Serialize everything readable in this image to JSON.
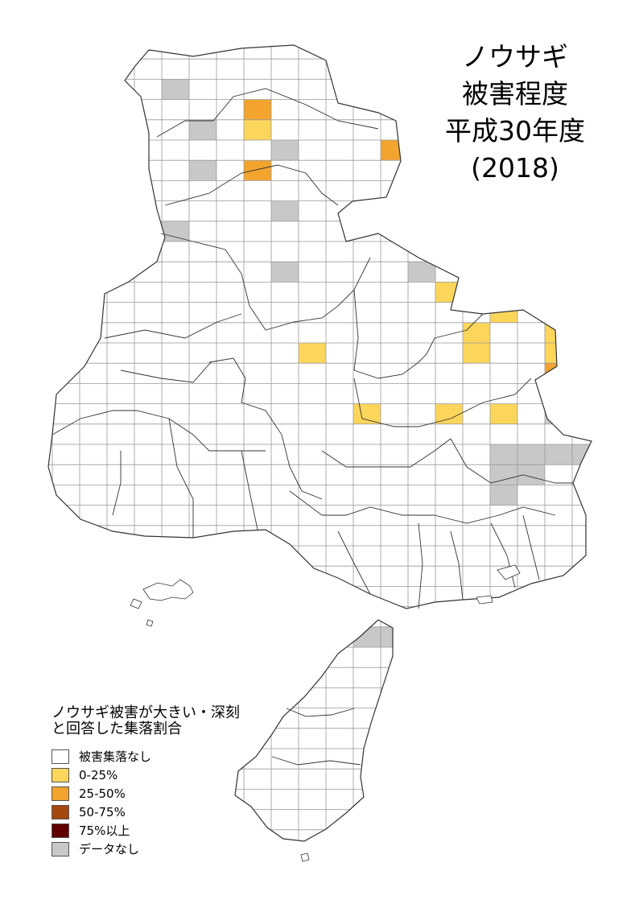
{
  "title": {
    "lines": [
      "ノウサギ",
      "被害程度",
      "平成30年度",
      "(2018)"
    ]
  },
  "legend": {
    "heading_lines": [
      "ノウサギ被害が大きい・深刻",
      "と回答した集落割合"
    ],
    "items": [
      {
        "label": "被害集落なし",
        "color": "#ffffff"
      },
      {
        "label": "0-25%",
        "color": "#fcd65a"
      },
      {
        "label": "25-50%",
        "color": "#f2a42e"
      },
      {
        "label": "50-75%",
        "color": "#a5470f"
      },
      {
        "label": "75%以上",
        "color": "#600000"
      },
      {
        "label": "データなし",
        "color": "#c8c8c8"
      }
    ]
  },
  "map": {
    "grid_color": "#999999",
    "outline_color": "#333333",
    "mainland_cells": {
      "0-25%": [
        [
          7,
          4
        ],
        [
          14,
          12
        ],
        [
          9,
          15
        ],
        [
          16,
          13
        ],
        [
          18,
          12
        ],
        [
          19,
          12
        ],
        [
          15,
          14
        ],
        [
          15,
          15
        ],
        [
          18,
          14
        ],
        [
          18,
          15
        ],
        [
          11,
          18
        ],
        [
          14,
          18
        ],
        [
          16,
          18
        ]
      ],
      "25-50%": [
        [
          7,
          3
        ],
        [
          7,
          6
        ],
        [
          12,
          5
        ],
        [
          18,
          16
        ],
        [
          19,
          16
        ]
      ],
      "no_data": [
        [
          4,
          2
        ],
        [
          12,
          2
        ],
        [
          5,
          4
        ],
        [
          8,
          5
        ],
        [
          5,
          6
        ],
        [
          8,
          8
        ],
        [
          4,
          9
        ],
        [
          8,
          11
        ],
        [
          13,
          11
        ],
        [
          18,
          17
        ],
        [
          18,
          18
        ],
        [
          16,
          20
        ],
        [
          17,
          20
        ],
        [
          18,
          20
        ],
        [
          19,
          20
        ],
        [
          16,
          21
        ],
        [
          17,
          21
        ],
        [
          16,
          22
        ],
        [
          20,
          20
        ],
        [
          20,
          21
        ]
      ]
    },
    "island_cells": {
      "0-25%": [
        [
          12,
          24
        ],
        [
          11,
          27
        ]
      ],
      "no_data": [
        [
          11,
          29
        ],
        [
          12,
          29
        ]
      ]
    }
  }
}
